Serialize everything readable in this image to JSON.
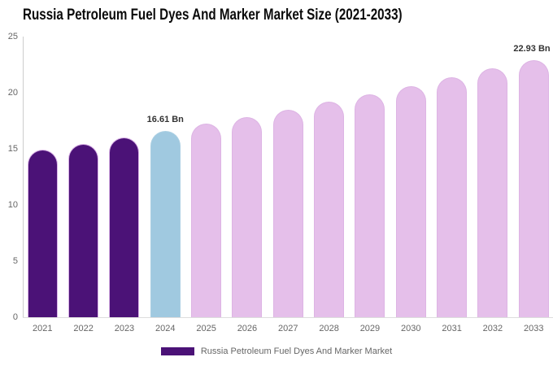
{
  "title": "Russia Petroleum Fuel Dyes And Marker Market Size (2021-2033)",
  "chart_data": {
    "type": "bar",
    "title": "Russia Petroleum Fuel Dyes And Marker Market Size (2021-2033)",
    "categories": [
      "2021",
      "2022",
      "2023",
      "2024",
      "2025",
      "2026",
      "2027",
      "2028",
      "2029",
      "2030",
      "2031",
      "2032",
      "2033"
    ],
    "values": [
      14.92,
      15.47,
      16.03,
      16.61,
      17.22,
      17.85,
      18.5,
      19.18,
      19.88,
      20.61,
      21.36,
      22.14,
      22.93
    ],
    "unit": "Bn",
    "xlabel": "",
    "ylabel": "",
    "ylim": [
      0,
      25
    ],
    "yticks": [
      0,
      5,
      10,
      15,
      20,
      25
    ],
    "grid": false,
    "legend_position": "bottom",
    "bar_periods": [
      "historical",
      "historical",
      "historical",
      "current",
      "forecast",
      "forecast",
      "forecast",
      "forecast",
      "forecast",
      "forecast",
      "forecast",
      "forecast",
      "forecast"
    ],
    "period_styles": {
      "historical": {
        "fill": "#4B1277",
        "border": "#D9B3E6"
      },
      "current": {
        "fill": "#A0C9E0",
        "border": "#ABCFE3"
      },
      "forecast": {
        "fill": "#E5BFEA",
        "border": "#DDB4E4"
      }
    },
    "annotations": [
      {
        "category": "2024",
        "text": "16.61 Bn"
      },
      {
        "category": "2033",
        "text": "22.93 Bn"
      }
    ]
  },
  "legend": {
    "swatch_color": "#4B1277",
    "label": "Russia Petroleum Fuel Dyes And Marker Market"
  },
  "colors": {
    "background": "#ffffff",
    "title": "#0b0b0b",
    "axis_line": "#cccccc",
    "baseline": "#dddddd",
    "tick_label": "#666666",
    "annotation": "#333333"
  }
}
